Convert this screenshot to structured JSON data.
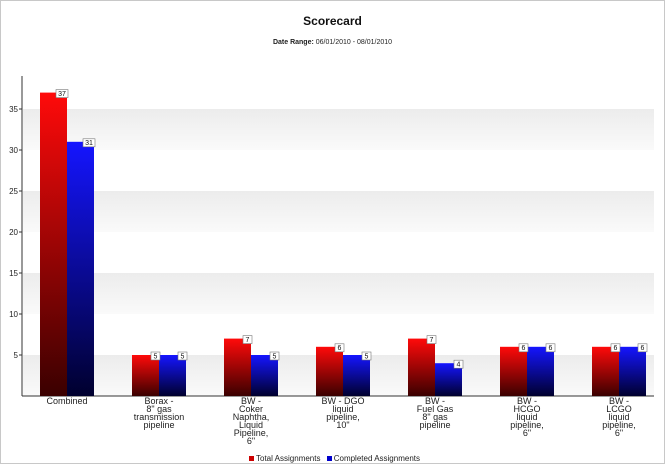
{
  "chart_data": {
    "type": "bar",
    "title": "Scorecard",
    "subtitle": {
      "label": "Date Range:",
      "value": "06/01/2010 - 08/01/2010"
    },
    "categories": [
      [
        "Combined"
      ],
      [
        "Borax -",
        "8\" gas",
        "transmission",
        "pipeline"
      ],
      [
        "BW -",
        "Coker",
        "Naphtha,",
        "Liquid",
        "Pipeline,",
        "6\""
      ],
      [
        "BW - DGO",
        "liquid",
        "pipeline,",
        "10\""
      ],
      [
        "BW -",
        "Fuel Gas",
        "8\" gas",
        "pipeline"
      ],
      [
        "BW -",
        "HCGO",
        "liquid",
        "pipeline,",
        "6\""
      ],
      [
        "BW -",
        "LCGO",
        "liquid",
        "pipeline,",
        "6\""
      ]
    ],
    "series": [
      {
        "name": "Total Assignments",
        "color": "#cc0000",
        "values": [
          37,
          5,
          7,
          6,
          7,
          6,
          6
        ]
      },
      {
        "name": "Completed Assignments",
        "color": "#0000cc",
        "values": [
          31,
          5,
          5,
          5,
          4,
          6,
          6
        ]
      }
    ],
    "yticks": [
      5,
      10,
      15,
      20,
      25,
      30,
      35
    ],
    "ylim": [
      0,
      39
    ],
    "grid": "alternating horizontal bands",
    "legend_position": "bottom-center"
  }
}
